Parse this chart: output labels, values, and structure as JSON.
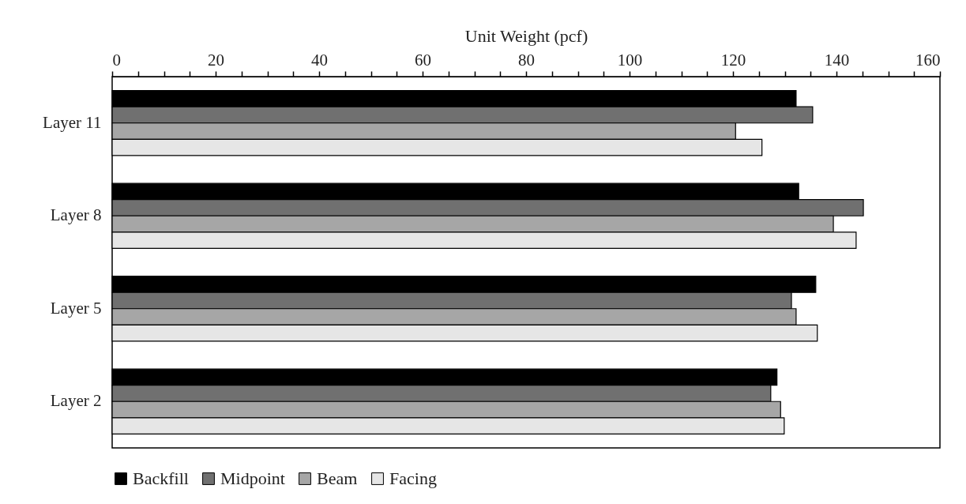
{
  "chart_data": {
    "type": "bar",
    "orientation": "horizontal",
    "xlabel": "Unit Weight (pcf)",
    "categories": [
      "Layer 11",
      "Layer 8",
      "Layer 5",
      "Layer 2"
    ],
    "series": [
      {
        "name": "Backfill",
        "color": "#000000",
        "values": [
          132.2,
          132.7,
          136.0,
          128.5
        ]
      },
      {
        "name": "Midpoint",
        "color": "#707070",
        "values": [
          135.4,
          145.2,
          131.3,
          127.3
        ]
      },
      {
        "name": "Beam",
        "color": "#a6a6a6",
        "values": [
          120.5,
          139.4,
          132.2,
          129.2
        ]
      },
      {
        "name": "Facing",
        "color": "#e6e6e6",
        "values": [
          125.6,
          143.8,
          136.3,
          129.9
        ]
      }
    ],
    "xlim": [
      0,
      160
    ],
    "xticks": [
      0,
      {
        "value": 5,
        "label": null
      },
      {
        "value": 10,
        "label": null
      },
      {
        "value": 15,
        "label": null
      },
      20,
      {
        "value": 25,
        "label": null
      },
      {
        "value": 30,
        "label": null
      },
      {
        "value": 35,
        "label": null
      },
      40,
      {
        "value": 45,
        "label": null
      },
      {
        "value": 50,
        "label": null
      },
      {
        "value": 55,
        "label": null
      },
      60,
      {
        "value": 65,
        "label": null
      },
      {
        "value": 70,
        "label": null
      },
      {
        "value": 75,
        "label": null
      },
      80,
      {
        "value": 85,
        "label": null
      },
      {
        "value": 90,
        "label": null
      },
      {
        "value": 95,
        "label": null
      },
      100,
      {
        "value": 105,
        "label": null
      },
      {
        "value": 110,
        "label": null
      },
      {
        "value": 115,
        "label": null
      },
      120,
      {
        "value": 125,
        "label": null
      },
      {
        "value": 130,
        "label": null
      },
      {
        "value": 135,
        "label": null
      },
      140,
      {
        "value": 145,
        "label": null
      },
      {
        "value": 150,
        "label": null
      },
      {
        "value": 155,
        "label": null
      },
      160
    ],
    "grid": false,
    "legend": "bottom"
  }
}
